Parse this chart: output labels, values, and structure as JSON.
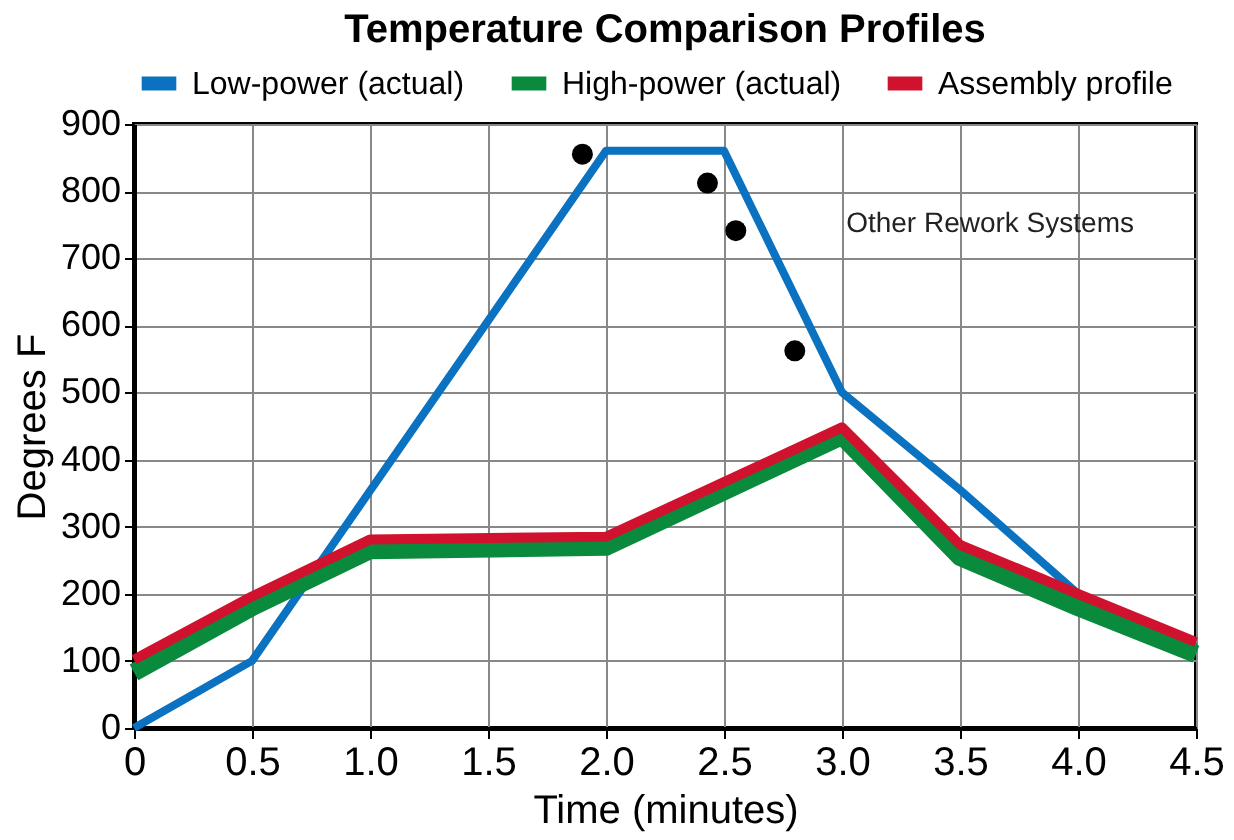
{
  "chart_data": {
    "type": "line",
    "title": "Temperature Comparison Profiles",
    "xlabel": "Time (minutes)",
    "ylabel": "Degrees F",
    "series": [
      {
        "name": "Low-power (actual)",
        "color": "#0a72c0",
        "x": [
          0,
          0.5,
          2.0,
          2.5,
          3.0,
          3.5,
          4.0,
          4.5
        ],
        "values": [
          0,
          100,
          860,
          860,
          500,
          355,
          200,
          120
        ]
      },
      {
        "name": "High-power (actual)",
        "color": "#0a8a3c",
        "x": [
          0,
          0.5,
          1.0,
          2.0,
          3.0,
          3.5,
          4.0,
          4.5
        ],
        "values": [
          83,
          180,
          265,
          270,
          435,
          255,
          180,
          110
        ]
      },
      {
        "name": "Assembly profile",
        "color": "#d0122e",
        "x": [
          0,
          0.5,
          1.0,
          2.0,
          3.0,
          3.5,
          4.0,
          4.5
        ],
        "values": [
          102,
          196,
          281,
          285,
          448,
          273,
          200,
          128
        ]
      },
      {
        "type": "scatter",
        "marker": "circle",
        "color": "#000000",
        "x": [
          1.9,
          2.43,
          2.55,
          2.8
        ],
        "values": [
          855,
          812,
          741,
          562
        ]
      }
    ],
    "annotations": [
      "Other Rework Systems"
    ],
    "xlim": [
      0,
      4.5
    ],
    "xticks": [
      {
        "value": 0,
        "label": "0"
      },
      0.5,
      {
        "value": 1,
        "label": "1.0"
      },
      1.5,
      {
        "value": 2,
        "label": "2.0"
      },
      2.5,
      {
        "value": 3,
        "label": "3.0"
      },
      3.5,
      {
        "value": 4,
        "label": "4.0"
      },
      4.5
    ],
    "ylim": [
      0,
      900
    ],
    "yticks": [
      0,
      100,
      200,
      300,
      400,
      500,
      600,
      700,
      800,
      900
    ],
    "grid": true,
    "legend": "top",
    "line_style": "solid"
  }
}
